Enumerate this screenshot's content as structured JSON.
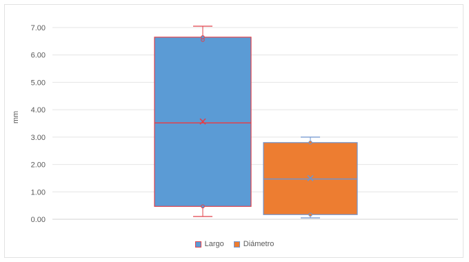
{
  "chart_data": {
    "type": "box",
    "title": "",
    "xlabel": "",
    "ylabel": "mm",
    "ylim": [
      0,
      7
    ],
    "yticks": [
      "0.00",
      "1.00",
      "2.00",
      "3.00",
      "4.00",
      "5.00",
      "6.00",
      "7.00"
    ],
    "grid": true,
    "legend": "bottom",
    "series": [
      {
        "name": "Largo",
        "fill": "#5b9bd5",
        "stroke": "#e0404a",
        "min": 0.1,
        "q1": 0.47,
        "median": 3.52,
        "mean": 3.57,
        "q3": 6.65,
        "max": 7.05,
        "points": [
          0.47,
          6.55,
          6.65
        ]
      },
      {
        "name": "Diámetro",
        "fill": "#ed7d31",
        "stroke": "#6f94cf",
        "min": 0.05,
        "q1": 0.17,
        "median": 1.47,
        "mean": 1.5,
        "q3": 2.8,
        "max": 3.0,
        "points": [
          0.17,
          2.8
        ]
      }
    ]
  }
}
